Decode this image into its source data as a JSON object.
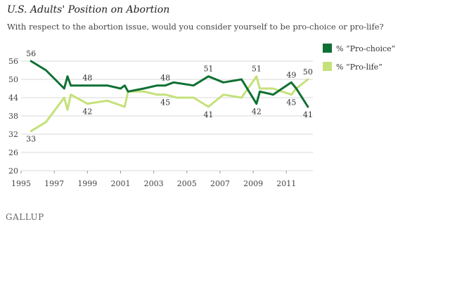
{
  "chart_data": {
    "type": "line",
    "title": "U.S. Adults' Position on Abortion",
    "subtitle": "With respect to the abortion issue, would you consider yourself to be pro-choice or pro-life?",
    "xlabel": "",
    "ylabel": "",
    "xlim": [
      1995,
      2012.6
    ],
    "ylim": [
      20,
      56
    ],
    "x_ticks": [
      "1995",
      "1997",
      "1999",
      "2001",
      "2003",
      "2005",
      "2007",
      "2009",
      "2011"
    ],
    "y_ticks": [
      "20",
      "26",
      "32",
      "38",
      "44",
      "50",
      "56"
    ],
    "grid": "horizontal",
    "legend_position": "right",
    "series": [
      {
        "name": "% “Pro-choice”",
        "color": "#0f7033",
        "points": [
          [
            1995.6,
            56
          ],
          [
            1996.5,
            53
          ],
          [
            1997.6,
            47
          ],
          [
            1997.8,
            51
          ],
          [
            1998.0,
            48
          ],
          [
            1999.0,
            48
          ],
          [
            2000.2,
            48
          ],
          [
            2001.0,
            47
          ],
          [
            2001.25,
            48
          ],
          [
            2001.45,
            46
          ],
          [
            2002.4,
            47
          ],
          [
            2003.2,
            48
          ],
          [
            2003.7,
            48
          ],
          [
            2004.2,
            49
          ],
          [
            2005.4,
            48
          ],
          [
            2006.3,
            51
          ],
          [
            2007.2,
            49
          ],
          [
            2008.3,
            50
          ],
          [
            2009.2,
            42
          ],
          [
            2009.4,
            46
          ],
          [
            2010.2,
            45
          ],
          [
            2011.3,
            49
          ],
          [
            2011.6,
            47
          ],
          [
            2012.3,
            41
          ]
        ],
        "labels": [
          {
            "x": 1995.6,
            "y": 56,
            "text": "56",
            "pos": "above"
          },
          {
            "x": 1999.0,
            "y": 48,
            "text": "48",
            "pos": "above"
          },
          {
            "x": 2003.7,
            "y": 48,
            "text": "48",
            "pos": "above"
          },
          {
            "x": 2006.3,
            "y": 51,
            "text": "51",
            "pos": "above"
          },
          {
            "x": 2009.2,
            "y": 42,
            "text": "42",
            "pos": "below"
          },
          {
            "x": 2011.3,
            "y": 49,
            "text": "49",
            "pos": "above"
          },
          {
            "x": 2012.3,
            "y": 41,
            "text": "41",
            "pos": "below"
          }
        ]
      },
      {
        "name": "% “Pro-life”",
        "color": "#c5e17a",
        "points": [
          [
            1995.6,
            33
          ],
          [
            1996.5,
            36
          ],
          [
            1997.6,
            44
          ],
          [
            1997.8,
            40
          ],
          [
            1998.0,
            45
          ],
          [
            1999.0,
            42
          ],
          [
            2000.2,
            43
          ],
          [
            2001.25,
            41
          ],
          [
            2001.45,
            46
          ],
          [
            2002.4,
            46
          ],
          [
            2003.2,
            45
          ],
          [
            2003.7,
            45
          ],
          [
            2004.4,
            44
          ],
          [
            2005.4,
            44
          ],
          [
            2006.3,
            41
          ],
          [
            2007.2,
            45
          ],
          [
            2008.3,
            44
          ],
          [
            2009.2,
            51
          ],
          [
            2009.4,
            47
          ],
          [
            2010.2,
            47
          ],
          [
            2011.3,
            45
          ],
          [
            2011.6,
            47
          ],
          [
            2012.3,
            50
          ]
        ],
        "labels": [
          {
            "x": 1995.6,
            "y": 33,
            "text": "33",
            "pos": "below"
          },
          {
            "x": 1999.0,
            "y": 42,
            "text": "42",
            "pos": "below"
          },
          {
            "x": 2003.7,
            "y": 45,
            "text": "45",
            "pos": "below"
          },
          {
            "x": 2006.3,
            "y": 41,
            "text": "41",
            "pos": "below"
          },
          {
            "x": 2009.2,
            "y": 51,
            "text": "51",
            "pos": "above"
          },
          {
            "x": 2011.3,
            "y": 45,
            "text": "45",
            "pos": "below"
          },
          {
            "x": 2012.3,
            "y": 50,
            "text": "50",
            "pos": "above"
          }
        ]
      }
    ]
  },
  "source_logo": "GALLUP"
}
